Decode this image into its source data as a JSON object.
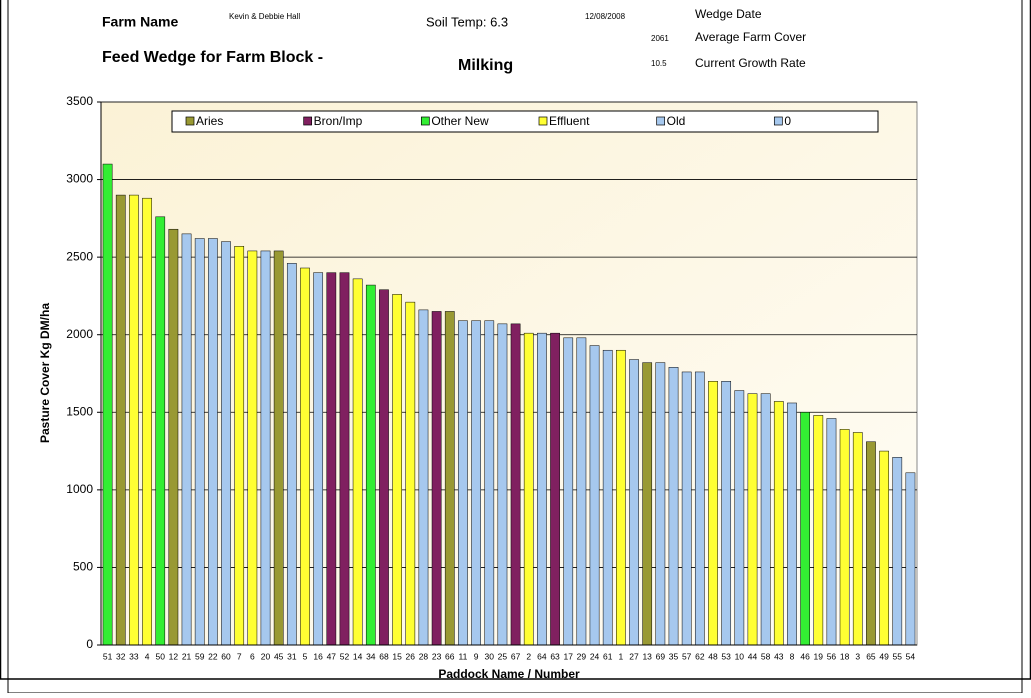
{
  "header": {
    "farm_name_label": "Farm Name",
    "farm_name": "Kevin & Debbie Hall",
    "soil_temp": "Soil Temp: 6.3",
    "wedge_date": "12/08/2008",
    "wedge_date_label": "Wedge Date",
    "average_cover": "2061",
    "average_cover_label": "Average Farm Cover",
    "growth_rate": "10.5",
    "growth_rate_label": "Current Growth Rate",
    "title": "Feed Wedge for Farm Block -",
    "block": "Milking"
  },
  "chart_data": {
    "type": "bar",
    "y_label": "Pasture Cover Kg DM/ha",
    "x_label": "Paddock Name / Number",
    "ylim": [
      0,
      3500
    ],
    "yticks": [
      0,
      500,
      1000,
      1500,
      2000,
      2500,
      3000,
      3500
    ],
    "grid": true,
    "legend": [
      {
        "name": "Aries",
        "color": "#999933"
      },
      {
        "name": "Bron/Imp",
        "color": "#802060"
      },
      {
        "name": "Other New",
        "color": "#33ee33"
      },
      {
        "name": "Effluent",
        "color": "#ffff33"
      },
      {
        "name": "Old",
        "color": "#a6c8ee"
      },
      {
        "name": "0",
        "color": "#a6c8ee"
      }
    ],
    "categories": [
      "51",
      "32",
      "33",
      "4",
      "50",
      "12",
      "21",
      "59",
      "22",
      "60",
      "7",
      "6",
      "20",
      "45",
      "31",
      "5",
      "16",
      "47",
      "52",
      "14",
      "34",
      "68",
      "15",
      "26",
      "28",
      "23",
      "66",
      "11",
      "9",
      "30",
      "25",
      "67",
      "2",
      "64",
      "63",
      "17",
      "29",
      "24",
      "61",
      "1",
      "27",
      "13",
      "69",
      "35",
      "57",
      "62",
      "48",
      "53",
      "10",
      "44",
      "58",
      "43",
      "8",
      "46",
      "19",
      "56",
      "18",
      "3",
      "65",
      "49",
      "55",
      "54"
    ],
    "values": [
      3100,
      2900,
      2900,
      2880,
      2760,
      2680,
      2650,
      2620,
      2620,
      2600,
      2570,
      2540,
      2540,
      2540,
      2460,
      2430,
      2400,
      2400,
      2400,
      2360,
      2320,
      2290,
      2260,
      2210,
      2160,
      2150,
      2150,
      2090,
      2090,
      2090,
      2070,
      2070,
      2010,
      2010,
      2010,
      1980,
      1980,
      1930,
      1900,
      1900,
      1840,
      1820,
      1820,
      1790,
      1760,
      1760,
      1700,
      1700,
      1640,
      1620,
      1620,
      1570,
      1560,
      1500,
      1480,
      1460,
      1390,
      1370,
      1310,
      1250,
      1210,
      1110
    ],
    "colors": [
      "#33ee33",
      "#999933",
      "#ffff33",
      "#ffff33",
      "#33ee33",
      "#999933",
      "#a6c8ee",
      "#a6c8ee",
      "#a6c8ee",
      "#a6c8ee",
      "#ffff33",
      "#ffff33",
      "#a6c8ee",
      "#999933",
      "#a6c8ee",
      "#ffff33",
      "#a6c8ee",
      "#802060",
      "#802060",
      "#ffff33",
      "#33ee33",
      "#802060",
      "#ffff33",
      "#ffff33",
      "#a6c8ee",
      "#802060",
      "#999933",
      "#a6c8ee",
      "#a6c8ee",
      "#a6c8ee",
      "#a6c8ee",
      "#802060",
      "#ffff33",
      "#a6c8ee",
      "#802060",
      "#a6c8ee",
      "#a6c8ee",
      "#a6c8ee",
      "#a6c8ee",
      "#ffff33",
      "#a6c8ee",
      "#999933",
      "#a6c8ee",
      "#a6c8ee",
      "#a6c8ee",
      "#a6c8ee",
      "#ffff33",
      "#a6c8ee",
      "#a6c8ee",
      "#ffff33",
      "#a6c8ee",
      "#ffff33",
      "#a6c8ee",
      "#33ee33",
      "#ffff33",
      "#a6c8ee",
      "#ffff33",
      "#ffff33",
      "#999933",
      "#ffff33",
      "#a6c8ee",
      "#a6c8ee"
    ]
  }
}
